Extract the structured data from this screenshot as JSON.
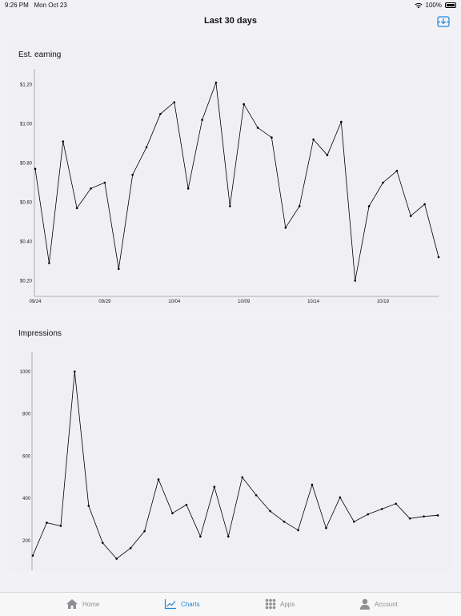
{
  "status_bar": {
    "time": "9:26 PM",
    "date": "Mon Oct 23",
    "battery": "100%"
  },
  "nav": {
    "title": "Last 30 days",
    "export_icon": "download-tray-icon"
  },
  "charts": {
    "earning": {
      "title": "Est. earning"
    },
    "impressions": {
      "title": "Impressions"
    }
  },
  "chart_data": [
    {
      "type": "line",
      "title": "Est. earning",
      "x": [
        "09/24",
        "09/25",
        "09/26",
        "09/27",
        "09/28",
        "09/29",
        "09/30",
        "10/01",
        "10/02",
        "10/03",
        "10/04",
        "10/05",
        "10/06",
        "10/07",
        "10/08",
        "10/09",
        "10/10",
        "10/11",
        "10/12",
        "10/13",
        "10/14",
        "10/15",
        "10/16",
        "10/17",
        "10/18",
        "10/19",
        "10/20",
        "10/21",
        "10/22",
        "10/23"
      ],
      "values": [
        0.77,
        0.29,
        0.91,
        0.57,
        0.67,
        0.7,
        0.26,
        0.74,
        0.88,
        1.05,
        1.11,
        0.67,
        1.02,
        1.21,
        0.58,
        1.1,
        0.98,
        0.93,
        0.47,
        0.58,
        0.92,
        0.84,
        1.01,
        0.2,
        0.58,
        0.7,
        0.76,
        0.53,
        0.59,
        0.32
      ],
      "x_tick_labels": [
        "09/24",
        "09/29",
        "10/04",
        "10/09",
        "10/14",
        "10/19"
      ],
      "y_tick_labels": [
        "$0.20",
        "$0.40",
        "$0.60",
        "$0.80",
        "$1.00",
        "$1.20"
      ],
      "y_ticks": [
        0.2,
        0.4,
        0.6,
        0.8,
        1.0,
        1.2
      ],
      "ylim": [
        0.12,
        1.28
      ],
      "grid": false,
      "color": "#000000"
    },
    {
      "type": "line",
      "title": "Impressions",
      "values": [
        130,
        285,
        270,
        1000,
        365,
        190,
        115,
        165,
        245,
        490,
        330,
        370,
        220,
        455,
        220,
        500,
        415,
        340,
        290,
        250,
        465,
        260,
        405,
        290,
        325,
        350,
        375,
        305,
        315,
        320
      ],
      "y_tick_labels": [
        "200",
        "400",
        "600",
        "800",
        "1000"
      ],
      "y_ticks": [
        200,
        400,
        600,
        800,
        1000
      ],
      "ylim": [
        60,
        1090
      ],
      "grid": false,
      "color": "#000000"
    }
  ],
  "tabbar": {
    "items": [
      {
        "label": "Home",
        "icon": "house-icon"
      },
      {
        "label": "Charts",
        "icon": "chart-line-icon"
      },
      {
        "label": "Apps",
        "icon": "grid-icon"
      },
      {
        "label": "Account",
        "icon": "person-icon"
      }
    ],
    "active": "Charts",
    "active_color": "#1f86d9",
    "inactive_color": "#8e8e93"
  }
}
